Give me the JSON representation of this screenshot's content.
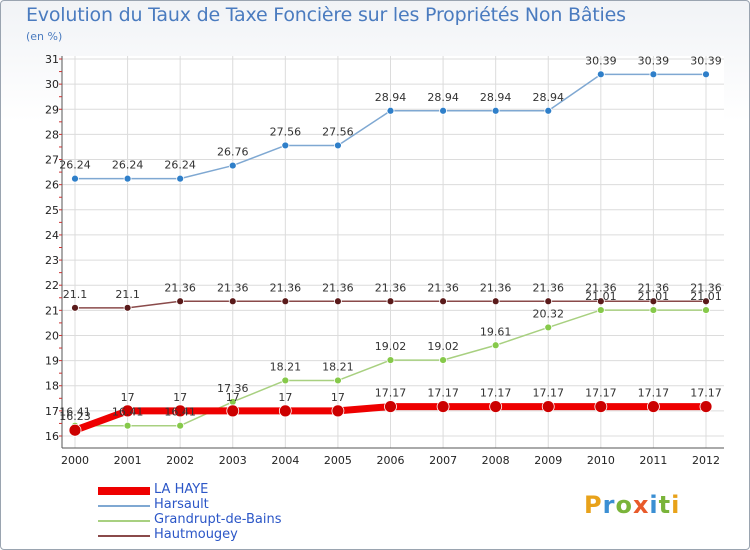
{
  "header": {
    "title": "Evolution du Taux de Taxe Foncière sur les Propriétés Non Bâties",
    "unit": "(en %)"
  },
  "logo": {
    "text": "Proxiti",
    "letters": [
      "P",
      "r",
      "o",
      "x",
      "i",
      "t",
      "i"
    ],
    "colors": [
      "#e8a21a",
      "#3b8fd3",
      "#7ab43a",
      "#e85a2a",
      "#3b8fd3",
      "#7ab43a",
      "#e8a21a"
    ]
  },
  "chart_data": {
    "type": "line",
    "title": "Evolution du Taux de Taxe Foncière sur les Propriétés Non Bâties",
    "ylabel": "(en %)",
    "xlabel": "",
    "ylim": [
      16,
      31
    ],
    "yticks": [
      "16",
      "17",
      "18",
      "19",
      "20",
      "21",
      "22",
      "23",
      "24",
      "25",
      "26",
      "27",
      "28",
      "29",
      "30",
      "31"
    ],
    "categories": [
      "2000",
      "2001",
      "2002",
      "2003",
      "2004",
      "2005",
      "2006",
      "2007",
      "2008",
      "2009",
      "2010",
      "2011",
      "2012"
    ],
    "grid": true,
    "series": [
      {
        "name": "LA HAYE",
        "values": [
          16.23,
          17,
          17,
          17,
          17,
          17,
          17.17,
          17.17,
          17.17,
          17.17,
          17.17,
          17.17,
          17.17
        ],
        "labels": [
          "16.23",
          "17",
          "17",
          "17",
          "17",
          "17",
          "17.17",
          "17.17",
          "17.17",
          "17.17",
          "17.17",
          "17.17",
          "17.17"
        ],
        "color": "#ee0000",
        "marker": "#cc0000"
      },
      {
        "name": "Harsault",
        "values": [
          26.24,
          26.24,
          26.24,
          26.76,
          27.56,
          27.56,
          28.94,
          28.94,
          28.94,
          28.94,
          30.39,
          30.39,
          30.39
        ],
        "labels": [
          "26.24",
          "26.24",
          "26.24",
          "26.76",
          "27.56",
          "27.56",
          "28.94",
          "28.94",
          "28.94",
          "28.94",
          "30.39",
          "30.39",
          "30.39"
        ],
        "color": "#7fa8d2",
        "marker": "#2f7fc9"
      },
      {
        "name": "Grandrupt-de-Bains",
        "values": [
          16.41,
          16.41,
          16.41,
          17.36,
          18.21,
          18.21,
          19.02,
          19.02,
          19.61,
          20.32,
          21.01,
          21.01,
          21.01
        ],
        "labels": [
          "16.41",
          "16.41",
          "16.41",
          "17.36",
          "18.21",
          "18.21",
          "19.02",
          "19.02",
          "19.61",
          "20.32",
          "21.01",
          "21.01",
          "21.01"
        ],
        "color": "#a8d080",
        "marker": "#86c94a"
      },
      {
        "name": "Hautmougey",
        "values": [
          21.1,
          21.1,
          21.36,
          21.36,
          21.36,
          21.36,
          21.36,
          21.36,
          21.36,
          21.36,
          21.36,
          21.36,
          21.36
        ],
        "labels": [
          "21.1",
          "21.1",
          "21.36",
          "21.36",
          "21.36",
          "21.36",
          "21.36",
          "21.36",
          "21.36",
          "21.36",
          "21.36",
          "21.36",
          "21.36"
        ],
        "color": "#8a4a4a",
        "marker": "#5a1a1a"
      }
    ],
    "legend": {
      "placement": "bottom-left",
      "entries": [
        "LA HAYE",
        "Harsault",
        "Grandrupt-de-Bains",
        "Hautmougey"
      ]
    }
  }
}
